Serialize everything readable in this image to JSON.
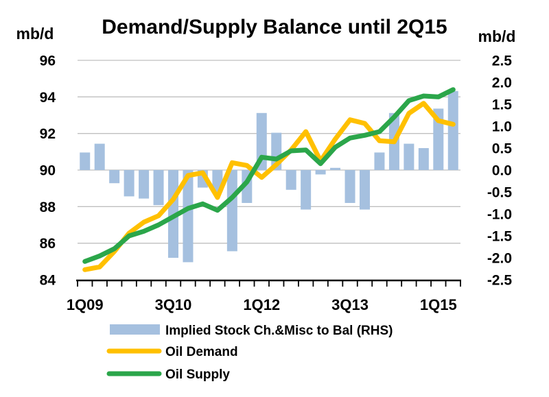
{
  "title": {
    "text": "Demand/Supply Balance until 2Q15",
    "color": "#993366"
  },
  "left_axis": {
    "unit_label": "mb/d",
    "min": 84,
    "max": 96,
    "ticks": [
      96,
      94,
      92,
      90,
      88,
      86,
      84
    ],
    "gridlines": [
      96,
      94,
      92,
      90,
      88,
      86
    ]
  },
  "right_axis": {
    "unit_label": "mb/d",
    "min": -2.5,
    "max": 2.5,
    "ticks": [
      "2.5",
      "2.0",
      "1.5",
      "1.0",
      "0.5",
      "0.0",
      "-0.5",
      "-1.0",
      "-1.5",
      "-2.0",
      "-2.5"
    ]
  },
  "x_axis": {
    "labels": [
      {
        "text": "1Q09",
        "slot": 0
      },
      {
        "text": "3Q10",
        "slot": 6
      },
      {
        "text": "1Q12",
        "slot": 12
      },
      {
        "text": "3Q13",
        "slot": 18
      },
      {
        "text": "1Q15",
        "slot": 24
      }
    ]
  },
  "chart_data": {
    "type": "combo-bar-line",
    "categories": [
      "1Q09",
      "2Q09",
      "3Q09",
      "4Q09",
      "1Q10",
      "2Q10",
      "3Q10",
      "4Q10",
      "1Q11",
      "2Q11",
      "3Q11",
      "4Q11",
      "1Q12",
      "2Q12",
      "3Q12",
      "4Q12",
      "1Q13",
      "2Q13",
      "3Q13",
      "4Q13",
      "1Q14",
      "2Q14",
      "3Q14",
      "4Q14",
      "1Q15",
      "2Q15"
    ],
    "series": [
      {
        "name": "Implied Stock Ch.&Misc to Bal (RHS)",
        "type": "bar",
        "axis": "right",
        "color": "#A5C0DF",
        "values": [
          0.4,
          0.6,
          -0.3,
          -0.6,
          -0.65,
          -0.8,
          -2.0,
          -2.1,
          -0.4,
          -0.5,
          -1.85,
          -0.75,
          1.3,
          0.85,
          -0.45,
          -0.9,
          -0.1,
          0.05,
          -0.75,
          -0.9,
          0.4,
          1.3,
          0.6,
          0.5,
          1.4,
          1.8
        ]
      },
      {
        "name": "Oil Demand",
        "type": "line",
        "axis": "left",
        "color": "#FFC000",
        "values": [
          84.55,
          84.7,
          85.55,
          86.55,
          87.15,
          87.5,
          88.4,
          89.7,
          89.85,
          88.5,
          90.4,
          90.25,
          89.6,
          90.3,
          91.1,
          92.1,
          90.5,
          91.7,
          92.75,
          92.55,
          91.6,
          91.55,
          93.1,
          93.65,
          92.7,
          92.5
        ]
      },
      {
        "name": "Oil Supply",
        "type": "line",
        "axis": "left",
        "color": "#2BA64A",
        "values": [
          85.0,
          85.3,
          85.7,
          86.4,
          86.65,
          87.0,
          87.45,
          87.9,
          88.15,
          87.8,
          88.5,
          89.35,
          90.7,
          90.6,
          91.05,
          91.1,
          90.35,
          91.25,
          91.75,
          91.9,
          92.1,
          92.9,
          93.8,
          94.05,
          94.0,
          94.4
        ]
      }
    ],
    "left_ylim": [
      84,
      96
    ],
    "right_ylim": [
      -2.5,
      2.5
    ],
    "grid": true,
    "legend_position": "bottom"
  }
}
